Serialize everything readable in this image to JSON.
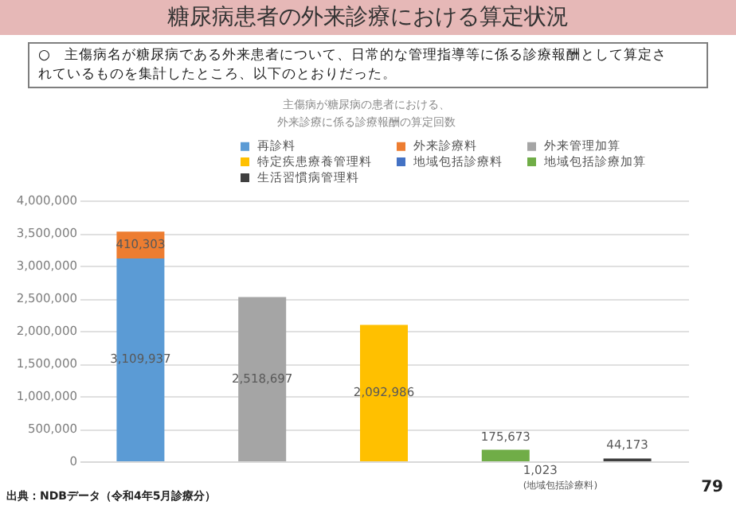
{
  "chart_data": {
    "type": "bar",
    "title": "糖尿病患者の外来診療における算定状況",
    "subtitle": "○　主傷病名が糖尿病である外来患者について、日常的な管理指導等に係る診療報酬として算定されているものを集計したところ、以下のとおりだった。",
    "annotations": [
      "主傷病が糖尿病の患者における、外来診療に係る診療報酬の算定回数",
      "(地域包括診療料)",
      "出典：NDBデータ（令和4年5月診療分）",
      "79"
    ],
    "categories": [
      null,
      null,
      null,
      null,
      null
    ],
    "stacked": true,
    "series": [
      {
        "name": "再診料",
        "color": "#5b9bd5",
        "values": [
          3109937,
          null,
          null,
          null,
          null
        ],
        "value_labels": [
          "3,109,937",
          null,
          null,
          null,
          null
        ]
      },
      {
        "name": "外来診療料",
        "color": "#ed7d31",
        "values": [
          410303,
          null,
          null,
          null,
          null
        ],
        "value_labels": [
          "410,303",
          null,
          null,
          null,
          null
        ]
      },
      {
        "name": "外来管理加算",
        "color": "#a5a5a5",
        "values": [
          null,
          2518697,
          null,
          null,
          null
        ],
        "value_labels": [
          null,
          "2,518,697",
          null,
          null,
          null
        ]
      },
      {
        "name": "特定疾患療養管理料",
        "color": "#ffc000",
        "values": [
          null,
          null,
          2092986,
          null,
          null
        ],
        "value_labels": [
          null,
          null,
          "2,092,986",
          null,
          null
        ]
      },
      {
        "name": "地域包括診療料",
        "color": "#4472c4",
        "values": [
          null,
          null,
          null,
          1023,
          null
        ],
        "value_labels": [
          null,
          null,
          null,
          "1,023",
          null
        ]
      },
      {
        "name": "地域包括診療加算",
        "color": "#70ad47",
        "values": [
          null,
          null,
          null,
          175673,
          null
        ],
        "value_labels": [
          null,
          null,
          null,
          "175,673",
          null
        ]
      },
      {
        "name": "生活習慣病管理料",
        "color": "#404040",
        "values": [
          null,
          null,
          null,
          null,
          44173
        ],
        "value_labels": [
          null,
          null,
          null,
          null,
          "44,173"
        ]
      }
    ],
    "ylim": [
      0,
      4000000
    ],
    "yticks": [
      0,
      {
        "value": 500000,
        "label": "500,000"
      },
      {
        "value": 1000000,
        "label": "1,000,000"
      },
      {
        "value": 1500000,
        "label": "1,500,000"
      },
      {
        "value": 2000000,
        "label": "2,000,000"
      },
      {
        "value": 2500000,
        "label": "2,500,000"
      },
      {
        "value": 3000000,
        "label": "3,000,000"
      },
      {
        "value": 3500000,
        "label": "3,500,000"
      },
      {
        "value": 4000000,
        "label": "4,000,000"
      }
    ],
    "grid": "y",
    "legend": "top right",
    "tick_labels": "y"
  }
}
